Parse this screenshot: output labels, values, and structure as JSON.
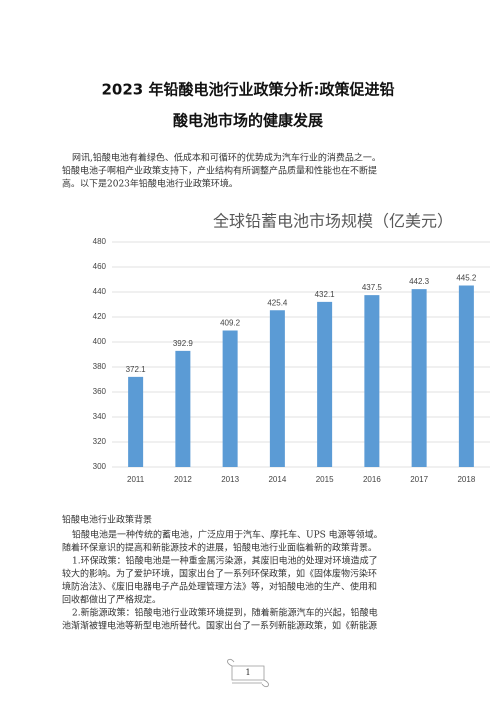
{
  "header": {
    "title_lines": [
      "2023 年铅酸电池行业政策分析:政策促进铅",
      "酸电池市场的健康发展"
    ]
  },
  "intro": [
    "网讯,铅酸电池有着绿色、低成本和可循环的优势成为汽车行业的消费品之一。",
    "铅酸电池子啊相产业政策支持下，产业结构有所调整产品质量和性能也在不断提",
    "高。以下是2023年铅酸电池行业政策环境。"
  ],
  "chart_data": {
    "type": "bar",
    "title": "全球铅蓄电池市场规模（亿美元）",
    "categories": [
      "2011",
      "2012",
      "2013",
      "2014",
      "2015",
      "2016",
      "2017",
      "2018"
    ],
    "values": [
      372.1,
      392.9,
      409.2,
      425.4,
      432.1,
      437.5,
      442.3,
      445.2
    ],
    "color": "#5b9bd5",
    "ylim": [
      300,
      480
    ],
    "yticks": [
      300,
      320,
      340,
      360,
      380,
      400,
      420,
      440,
      460,
      480
    ],
    "grid": true
  },
  "section": {
    "heading": "铅酸电池行业政策背景",
    "paragraphs": [
      [
        "铅酸电池是一种传统的蓄电池，广泛应用于汽车、摩托车、UPS 电源等领域。",
        "随着环保意识的提高和新能源技术的进展，铅酸电池行业面临着新的政策背景。"
      ],
      [
        "1.环保政策：铅酸电池是一种重金属污染源，其废旧电池的处理对环境造成了",
        "较大的影响。为了爱护环境，国家出台了一系列环保政策，如《固体废物污染环",
        "境防治法》、《废旧电器电子产品处理管理方法》等，对铅酸电池的生产、使用和",
        "回收都做出了严格规定。"
      ],
      [
        "2.新能源政策：铅酸电池行业政策环境提到，随着新能源汽车的兴起，铅酸电",
        "池渐渐被锂电池等新型电池所替代。国家出台了一系列新能源政策，如《新能源"
      ]
    ]
  },
  "footer": {
    "page_number": "1"
  }
}
